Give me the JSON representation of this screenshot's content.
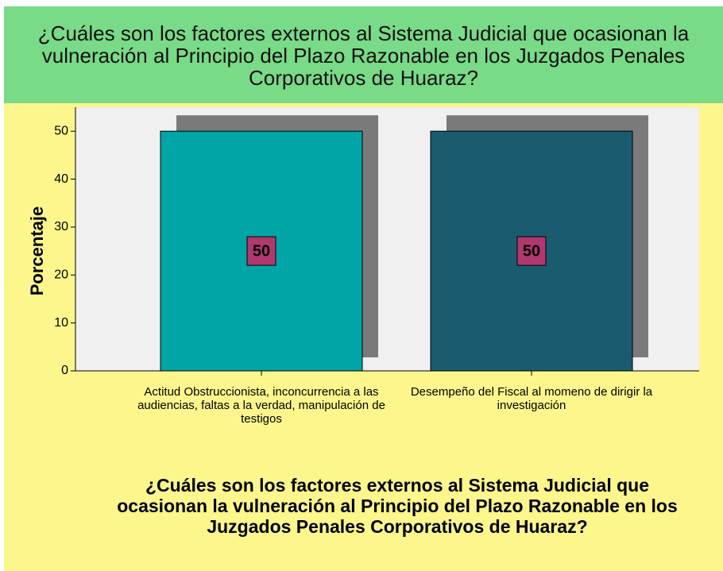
{
  "chart_data": {
    "type": "bar",
    "title": "¿Cuáles son los factores externos al Sistema Judicial que ocasionan la vulneración al Principio del Plazo Razonable en los Juzgados Penales Corporativos de Huaraz?",
    "x_label": "¿Cuáles son los factores externos al Sistema Judicial que ocasionan la vulneración al Principio del Plazo Razonable en los Juzgados Penales Corporativos de Huaraz?",
    "y_label": "Porcentaje",
    "categories": [
      "Actitud Obstruccionista, inconcurrencia a las audiencias, faltas a la verdad, manipulación de testigos",
      "Desempeño del Fiscal al momeno de dirigir la investigación"
    ],
    "values": [
      50,
      50
    ],
    "colors": [
      "#00a6a6",
      "#1b5b70"
    ],
    "label_color": "#b0386e",
    "ylim": [
      0,
      55
    ],
    "yticks": [
      0,
      10,
      20,
      30,
      40,
      50
    ]
  }
}
